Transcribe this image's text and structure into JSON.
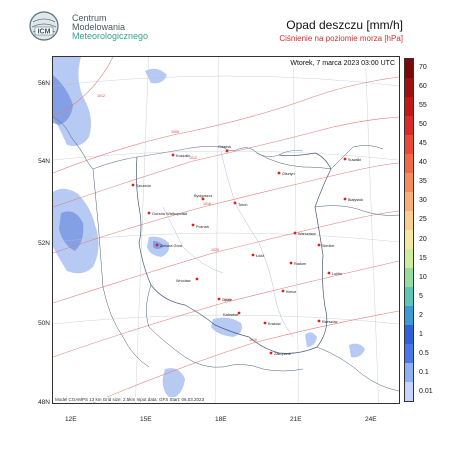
{
  "logo": {
    "line1": "Centrum",
    "line2": "Modelowania",
    "line3": "Meteorologicznego",
    "mark_text": "ICM"
  },
  "header": {
    "title": "Opad deszczu [mm/h]",
    "subtitle": "Ciśnienie na poziomie morza [hPa]"
  },
  "map": {
    "date": "Wtorek, 7 marca 2023 03:00 UTC",
    "footer": "Model COAMPS 13 km  Grid size: 2.5km  Input data: GFS  Start: 06.03.2023",
    "lat_labels": [
      "56N",
      "54N",
      "52N",
      "50N",
      "48N"
    ],
    "lon_labels": [
      "12E",
      "15E",
      "18E",
      "21E",
      "24E"
    ],
    "cities": [
      {
        "name": "Gdańsk"
      },
      {
        "name": "Koszalin"
      },
      {
        "name": "Szczecin"
      },
      {
        "name": "Olsztyn"
      },
      {
        "name": "Suwałki"
      },
      {
        "name": "Białystok"
      },
      {
        "name": "Bydgoszcz"
      },
      {
        "name": "Toruń"
      },
      {
        "name": "Gorzów Wielkopolski"
      },
      {
        "name": "Poznań"
      },
      {
        "name": "Zielona Góra"
      },
      {
        "name": "Warszawa"
      },
      {
        "name": "Łódź"
      },
      {
        "name": "Wrocław"
      },
      {
        "name": "Lublin"
      },
      {
        "name": "Kielce"
      },
      {
        "name": "Opole"
      },
      {
        "name": "Katowice"
      },
      {
        "name": "Kraków"
      },
      {
        "name": "Rzeszów"
      },
      {
        "name": "Zakopane"
      },
      {
        "name": "Siedlce"
      },
      {
        "name": "Radom"
      }
    ],
    "isobar_labels": [
      "1008",
      "1012",
      "1016",
      "1020",
      "1024",
      "1016",
      "1012"
    ]
  },
  "colorbar": {
    "ticks": [
      "70",
      "60",
      "55",
      "50",
      "45",
      "40",
      "35",
      "30",
      "25",
      "20",
      "15",
      "10",
      "5",
      "2",
      "1",
      "0.5",
      "0.1",
      "0.01"
    ],
    "colors": [
      "#7a0a0a",
      "#a01010",
      "#c21818",
      "#dc2a2a",
      "#e84a3a",
      "#f06a4a",
      "#f48c60",
      "#f8ae7a",
      "#f8cf92",
      "#f2e8a0",
      "#cdeca0",
      "#96dca0",
      "#5ec6b4",
      "#3b9bd6",
      "#3160d8",
      "#4a78e8",
      "#8fb0f2",
      "#c4d4fa"
    ]
  }
}
